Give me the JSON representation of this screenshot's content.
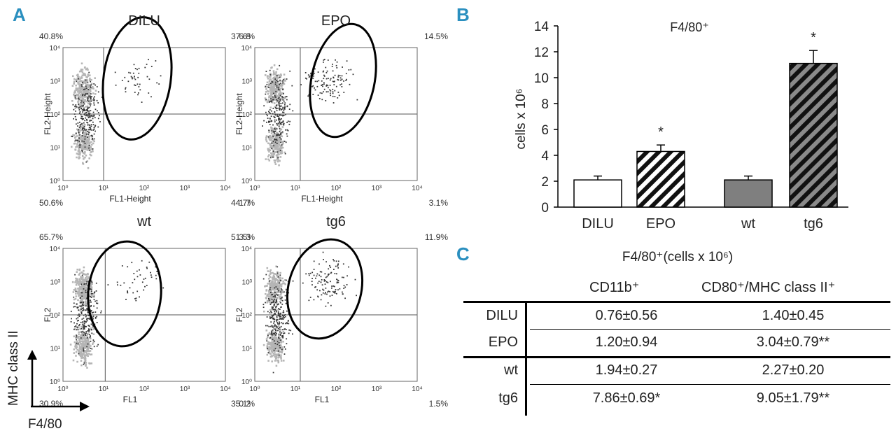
{
  "colors": {
    "panel_letter": "#2a8fbf",
    "dot_dark": "#333333",
    "dot_light": "#b5b5b5",
    "bar_gray": "#7f7f7f"
  },
  "panel_a": {
    "letter": "A",
    "axis_y_label": "MHC class II",
    "axis_x_label": "F4/80",
    "tick_labels": [
      "10⁰",
      "10¹",
      "10²",
      "10³",
      "10⁴"
    ],
    "plots": [
      {
        "title": "DILU",
        "ylabel": "FL2-Height",
        "xlabel": "FL1-Height",
        "ul": "40.8%",
        "ur": "6.8",
        "ll": "50.6%",
        "lr": "1.7"
      },
      {
        "title": "EPO",
        "ylabel": "FL2-Height",
        "xlabel": "FL1-Height",
        "ul": "37.6%",
        "ur": "14.5%",
        "ll": "44.7%",
        "lr": "3.1%"
      },
      {
        "title": "wt",
        "ylabel": "FL2",
        "xlabel": "FL1",
        "ul": "65.7%",
        "ur": "3.3",
        "ll": "30.9%",
        "lr": "0.2"
      },
      {
        "title": "tg6",
        "ylabel": "FL2",
        "xlabel": "FL1",
        "ul": "51.5%",
        "ur": "11.9%",
        "ll": "35.1%",
        "lr": "1.5%"
      }
    ]
  },
  "chart_data": {
    "type": "bar",
    "panel": "B",
    "title": "F4/80⁺",
    "ylabel": "cells x 10⁶",
    "xlabel": "",
    "categories": [
      "DILU",
      "EPO",
      "wt",
      "tg6"
    ],
    "values": [
      2.1,
      4.3,
      2.1,
      11.1
    ],
    "errors": [
      0.3,
      0.5,
      0.3,
      1.0
    ],
    "significance": [
      "",
      "*",
      "",
      "*"
    ],
    "fills": [
      "white",
      "hatched-white",
      "gray",
      "hatched-gray"
    ],
    "ylim": [
      0,
      14
    ],
    "yticks": [
      0,
      2,
      4,
      6,
      8,
      10,
      12,
      14
    ],
    "grid": false
  },
  "panel_c": {
    "letter": "C",
    "title": "F4/80⁺(cells x 10⁶)",
    "col1": "CD11b⁺",
    "col2": "CD80⁺/MHC class II⁺",
    "rows": [
      {
        "label": "DILU",
        "v1": "0.76±0.56",
        "v2": "1.40±0.45"
      },
      {
        "label": "EPO",
        "v1": "1.20±0.94",
        "v2": "3.04±0.79**"
      },
      {
        "label": "wt",
        "v1": "1.94±0.27",
        "v2": "2.27±0.20"
      },
      {
        "label": "tg6",
        "v1": "7.86±0.69*",
        "v2": "9.05±1.79**"
      }
    ]
  }
}
